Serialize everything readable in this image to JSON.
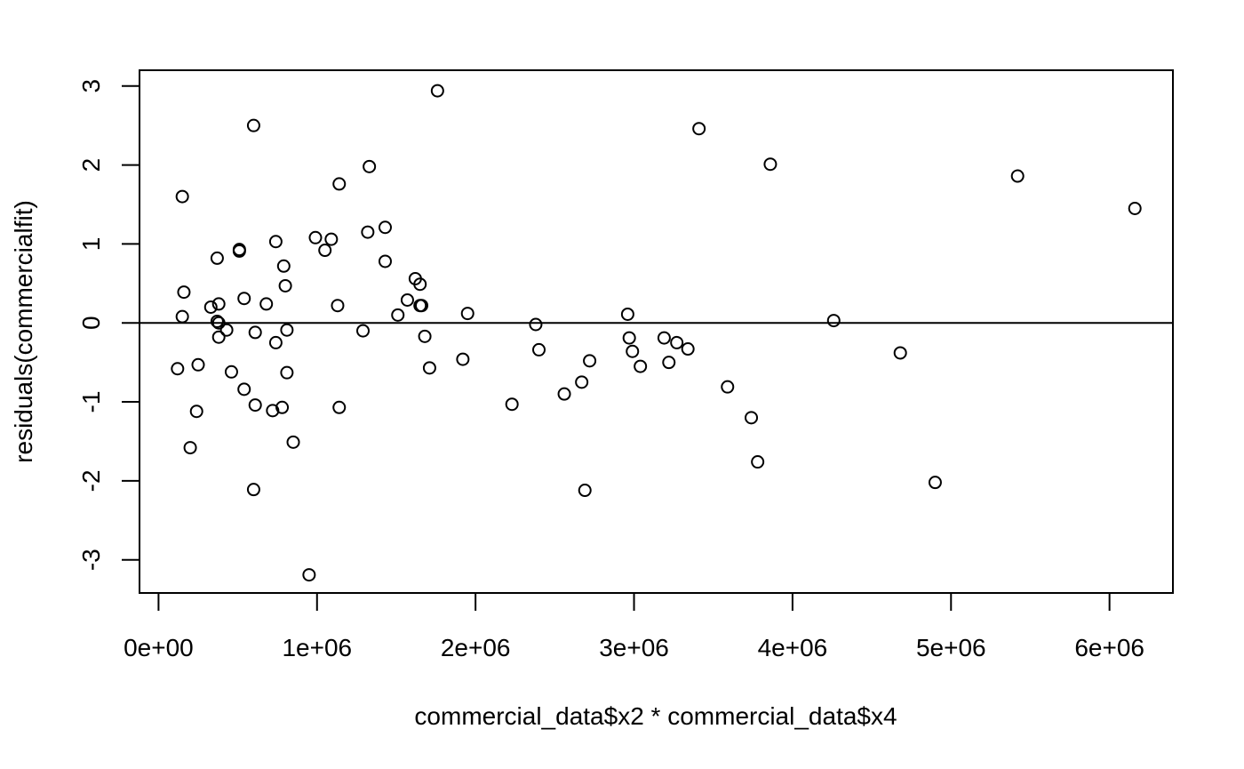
{
  "chart_data": {
    "type": "scatter",
    "title": "",
    "xlabel": "commercial_data$x2 * commercial_data$x4",
    "ylabel": "residuals(commercialfit)",
    "xlim": [
      -120000,
      6400000
    ],
    "ylim": [
      -3.42,
      3.2
    ],
    "grid": false,
    "legend": "none",
    "marker": "open-circle",
    "colors": {
      "points": "#000000",
      "axes": "#000000",
      "background": "#ffffff"
    },
    "reference_line": {
      "y": 0
    },
    "x_ticks": [
      {
        "value": 0,
        "label": "0e+00"
      },
      {
        "value": 1000000,
        "label": "1e+06"
      },
      {
        "value": 2000000,
        "label": "2e+06"
      },
      {
        "value": 3000000,
        "label": "3e+06"
      },
      {
        "value": 4000000,
        "label": "4e+06"
      },
      {
        "value": 5000000,
        "label": "5e+06"
      },
      {
        "value": 6000000,
        "label": "6e+06"
      }
    ],
    "y_ticks": [
      {
        "value": -3,
        "label": "-3"
      },
      {
        "value": -2,
        "label": "-2"
      },
      {
        "value": -1,
        "label": "-1"
      },
      {
        "value": 0,
        "label": "0"
      },
      {
        "value": 1,
        "label": "1"
      },
      {
        "value": 2,
        "label": "2"
      },
      {
        "value": 3,
        "label": "3"
      }
    ],
    "points": [
      [
        150000,
        1.6
      ],
      [
        160000,
        0.39
      ],
      [
        150000,
        0.08
      ],
      [
        120000,
        -0.58
      ],
      [
        200000,
        -1.58
      ],
      [
        240000,
        -1.12
      ],
      [
        250000,
        -0.53
      ],
      [
        330000,
        0.2
      ],
      [
        370000,
        0.82
      ],
      [
        380000,
        0.24
      ],
      [
        380000,
        0.0
      ],
      [
        370000,
        0.02
      ],
      [
        380000,
        -0.18
      ],
      [
        430000,
        -0.09
      ],
      [
        460000,
        -0.62
      ],
      [
        510000,
        0.93
      ],
      [
        510000,
        0.91
      ],
      [
        540000,
        0.31
      ],
      [
        540000,
        -0.84
      ],
      [
        600000,
        2.5
      ],
      [
        610000,
        -0.12
      ],
      [
        610000,
        -1.04
      ],
      [
        600000,
        -2.11
      ],
      [
        680000,
        0.24
      ],
      [
        720000,
        -1.11
      ],
      [
        740000,
        1.03
      ],
      [
        740000,
        -0.25
      ],
      [
        780000,
        -1.07
      ],
      [
        790000,
        0.72
      ],
      [
        800000,
        0.47
      ],
      [
        810000,
        -0.09
      ],
      [
        810000,
        -0.63
      ],
      [
        850000,
        -1.51
      ],
      [
        950000,
        -3.19
      ],
      [
        990000,
        1.08
      ],
      [
        1050000,
        0.92
      ],
      [
        1090000,
        1.06
      ],
      [
        1130000,
        0.22
      ],
      [
        1140000,
        1.76
      ],
      [
        1140000,
        -1.07
      ],
      [
        1290000,
        -0.1
      ],
      [
        1320000,
        1.15
      ],
      [
        1330000,
        1.98
      ],
      [
        1430000,
        1.21
      ],
      [
        1430000,
        0.78
      ],
      [
        1510000,
        0.1
      ],
      [
        1570000,
        0.29
      ],
      [
        1620000,
        0.56
      ],
      [
        1650000,
        0.49
      ],
      [
        1650000,
        0.22
      ],
      [
        1660000,
        0.22
      ],
      [
        1680000,
        -0.17
      ],
      [
        1710000,
        -0.57
      ],
      [
        1760000,
        2.94
      ],
      [
        1920000,
        -0.46
      ],
      [
        1950000,
        0.12
      ],
      [
        2230000,
        -1.03
      ],
      [
        2380000,
        -0.02
      ],
      [
        2400000,
        -0.34
      ],
      [
        2560000,
        -0.9
      ],
      [
        2670000,
        -0.75
      ],
      [
        2690000,
        -2.12
      ],
      [
        2720000,
        -0.48
      ],
      [
        2960000,
        0.11
      ],
      [
        2970000,
        -0.19
      ],
      [
        2990000,
        -0.36
      ],
      [
        3040000,
        -0.55
      ],
      [
        3190000,
        -0.19
      ],
      [
        3220000,
        -0.5
      ],
      [
        3270000,
        -0.25
      ],
      [
        3340000,
        -0.33
      ],
      [
        3410000,
        2.46
      ],
      [
        3590000,
        -0.81
      ],
      [
        3740000,
        -1.2
      ],
      [
        3780000,
        -1.76
      ],
      [
        3860000,
        2.01
      ],
      [
        4260000,
        0.03
      ],
      [
        4680000,
        -0.38
      ],
      [
        4900000,
        -2.02
      ],
      [
        5420000,
        1.86
      ],
      [
        6160000,
        1.45
      ]
    ]
  }
}
